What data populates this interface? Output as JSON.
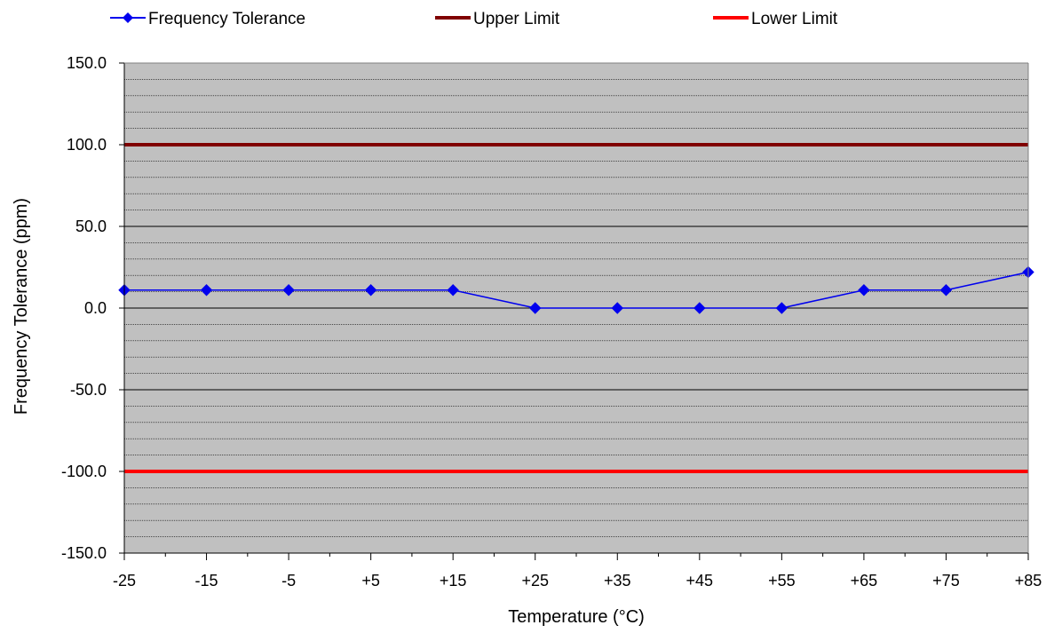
{
  "chart_data": {
    "type": "line",
    "title": "",
    "xlabel": "Temperature (°C)",
    "ylabel": "Frequency Tolerance (ppm)",
    "categories": [
      "-25",
      "-15",
      "-5",
      "+5",
      "+15",
      "+25",
      "+35",
      "+45",
      "+55",
      "+65",
      "+75",
      "+85"
    ],
    "ylim": [
      -150,
      150
    ],
    "y_ticks": [
      "150.0",
      "100.0",
      "50.0",
      "0.0",
      "-50.0",
      "-100.0",
      "-150.0"
    ],
    "y_tick_values": [
      150,
      100,
      50,
      0,
      -50,
      -100,
      -150
    ],
    "grid": true,
    "legend_position": "top",
    "background_color": "#c0c0c0",
    "series": [
      {
        "name": "Frequency Tolerance",
        "values": [
          11,
          11,
          11,
          11,
          11,
          0,
          0,
          0,
          0,
          11,
          11,
          22
        ],
        "color": "#0000ee",
        "marker": "diamond"
      },
      {
        "name": "Upper Limit",
        "values": [
          100,
          100,
          100,
          100,
          100,
          100,
          100,
          100,
          100,
          100,
          100,
          100
        ],
        "color": "#800000",
        "marker": "none"
      },
      {
        "name": "Lower Limit",
        "values": [
          -100,
          -100,
          -100,
          -100,
          -100,
          -100,
          -100,
          -100,
          -100,
          -100,
          -100,
          -100
        ],
        "color": "#ff0000",
        "marker": "none"
      }
    ]
  }
}
